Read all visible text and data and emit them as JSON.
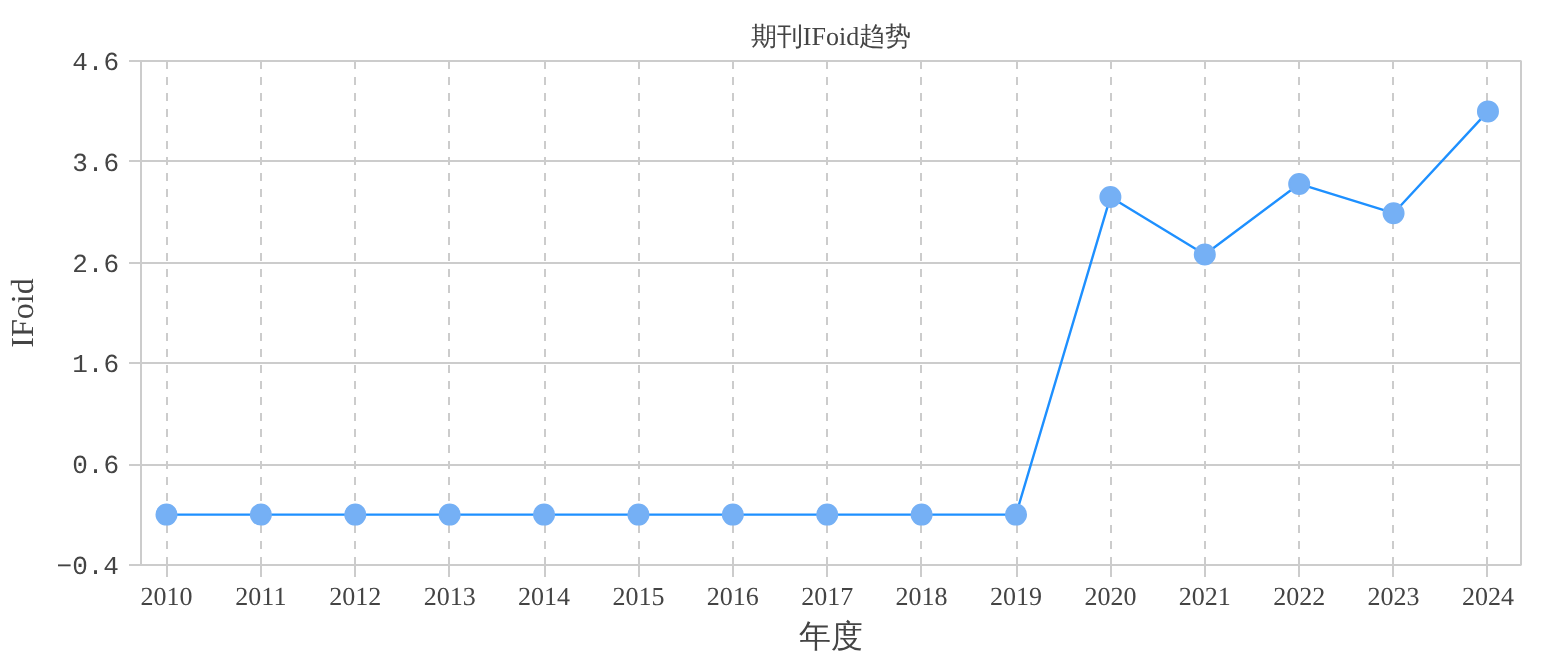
{
  "chart_data": {
    "type": "line",
    "title": "期刊IFoid趋势",
    "xlabel": "年度",
    "ylabel": "IFoid",
    "categories": [
      "2010",
      "2011",
      "2012",
      "2013",
      "2014",
      "2015",
      "2016",
      "2017",
      "2018",
      "2019",
      "2020",
      "2021",
      "2022",
      "2023",
      "2024"
    ],
    "series": [
      {
        "color": "#1e90ff",
        "values": [
          0.1,
          0.1,
          0.1,
          0.1,
          0.1,
          0.1,
          0.1,
          0.1,
          0.1,
          0.1,
          3.25,
          2.68,
          3.38,
          3.09,
          4.1
        ]
      }
    ],
    "ylim": [
      -0.4,
      4.6
    ],
    "yticks": [
      -0.4,
      0.6,
      1.6,
      2.6,
      3.6,
      4.6
    ],
    "grid": true,
    "marker": "circle",
    "line_style": "solid"
  }
}
